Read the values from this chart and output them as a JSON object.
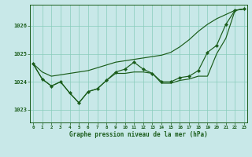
{
  "title": "Graphe pression niveau de la mer (hPa)",
  "background_color": "#c8e8e8",
  "grid_color": "#88ccbb",
  "line_color": "#1a5c1a",
  "marker_color": "#1a5c1a",
  "x_ticks": [
    0,
    1,
    2,
    3,
    4,
    5,
    6,
    7,
    8,
    9,
    10,
    11,
    12,
    13,
    14,
    15,
    16,
    17,
    18,
    19,
    20,
    21,
    22,
    23
  ],
  "y_ticks": [
    1023,
    1024,
    1025,
    1026
  ],
  "ylim": [
    1022.55,
    1026.75
  ],
  "xlim": [
    -0.3,
    23.3
  ],
  "hours": [
    0,
    1,
    2,
    3,
    4,
    5,
    6,
    7,
    8,
    9,
    10,
    11,
    12,
    13,
    14,
    15,
    16,
    17,
    18,
    19,
    20,
    21,
    22,
    23
  ],
  "pressure_main": [
    1024.65,
    1024.1,
    1023.85,
    1024.0,
    1023.6,
    1023.25,
    1023.65,
    1023.75,
    1024.05,
    1024.35,
    1024.45,
    1024.7,
    1024.45,
    1024.3,
    1024.0,
    1024.0,
    1024.15,
    1024.2,
    1024.4,
    1025.05,
    1025.3,
    1026.05,
    1026.55,
    1026.6
  ],
  "pressure_upper": [
    1024.65,
    1024.35,
    1024.2,
    1024.25,
    1024.3,
    1024.35,
    1024.4,
    1024.5,
    1024.6,
    1024.7,
    1024.75,
    1024.8,
    1024.85,
    1024.9,
    1024.95,
    1025.05,
    1025.25,
    1025.5,
    1025.8,
    1026.05,
    1026.25,
    1026.4,
    1026.55,
    1026.6
  ],
  "pressure_lower": [
    1024.65,
    1024.1,
    1023.85,
    1024.0,
    1023.6,
    1023.25,
    1023.65,
    1023.75,
    1024.05,
    1024.3,
    1024.3,
    1024.35,
    1024.35,
    1024.3,
    1023.95,
    1023.95,
    1024.05,
    1024.1,
    1024.2,
    1024.2,
    1025.0,
    1025.55,
    1026.55,
    1026.6
  ]
}
